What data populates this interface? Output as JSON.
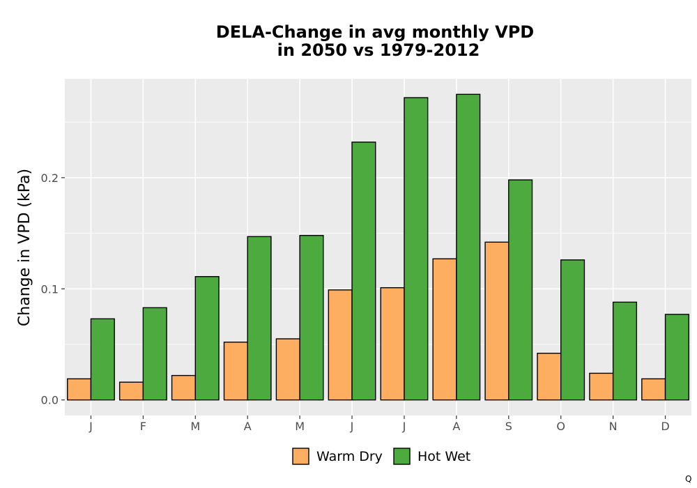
{
  "chart_data": {
    "type": "bar",
    "title_lines": [
      "DELA-Change in avg monthly VPD",
      "in 2050 vs 1979-2012"
    ],
    "xlabel": "",
    "ylabel": "Change in VPD (kPa)",
    "categories": [
      "J",
      "F",
      "M",
      "A",
      "M",
      "J",
      "J",
      "A",
      "S",
      "O",
      "N",
      "D"
    ],
    "series": [
      {
        "name": "Warm Dry",
        "color": "#fdae61",
        "values": [
          0.019,
          0.016,
          0.022,
          0.052,
          0.055,
          0.099,
          0.101,
          0.127,
          0.142,
          0.042,
          0.024,
          0.019
        ]
      },
      {
        "name": "Hot Wet",
        "color": "#4daa3f",
        "values": [
          0.073,
          0.083,
          0.111,
          0.147,
          0.148,
          0.232,
          0.272,
          0.275,
          0.198,
          0.126,
          0.088,
          0.077
        ]
      }
    ],
    "ylim": [
      -0.014,
      0.289
    ],
    "yticks": [
      0.0,
      0.1,
      0.2
    ],
    "ytick_labels": [
      "0.0",
      "0.1",
      "0.2"
    ],
    "grid": true,
    "legend_position": "bottom",
    "panel_color": "#ebebeb",
    "corner_mark": "Q"
  }
}
